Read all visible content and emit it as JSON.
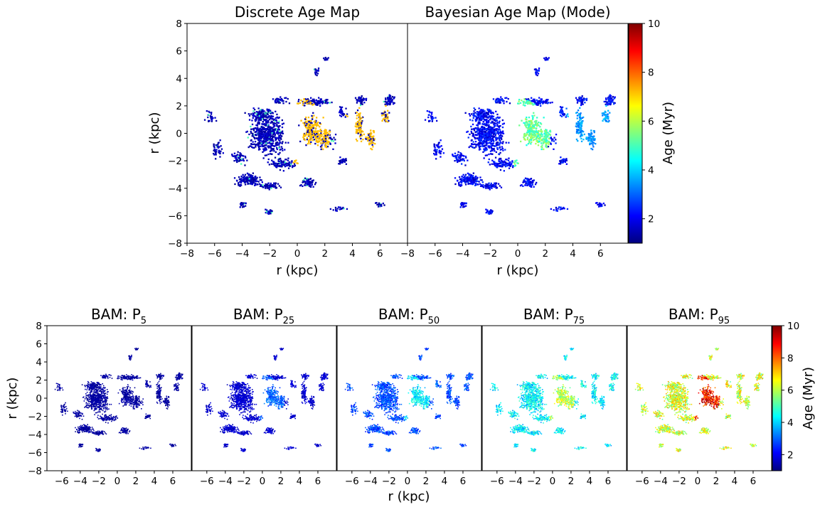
{
  "colors": {
    "colormap": "jet",
    "colormap_stops": [
      "#00007f",
      "#0000ff",
      "#007fff",
      "#00ffff",
      "#7fff7f",
      "#ffff00",
      "#ff7f00",
      "#ff0000",
      "#7f0000"
    ],
    "background": "#ffffff",
    "axes": "#000000"
  },
  "chart_data": [
    {
      "type": "heatmap",
      "title": "Discrete Age Map",
      "xlabel": "r (kpc)",
      "ylabel": "r (kpc)",
      "xlim": [
        -8,
        8
      ],
      "ylim": [
        -8,
        8
      ],
      "xticks": [
        "−8",
        "−6",
        "−4",
        "−2",
        "0",
        "2",
        "4",
        "6"
      ],
      "yticks": [
        "−8",
        "−6",
        "−4",
        "−2",
        "0",
        "2",
        "4",
        "6",
        "8"
      ],
      "colorbar": "shared top",
      "regions": [
        {
          "x": -2.2,
          "y": -0.2,
          "age": 1.2
        },
        {
          "x": -2.5,
          "y": 1.3,
          "age": 1.3
        },
        {
          "x": -3.5,
          "y": -3.4,
          "age": 1.5
        },
        {
          "x": 1.0,
          "y": 0.2,
          "age": 7.5
        },
        {
          "x": 2.0,
          "y": -0.4,
          "age": 7.0
        },
        {
          "x": 4.5,
          "y": 0.6,
          "age": 7.2
        },
        {
          "x": 5.3,
          "y": -0.4,
          "age": 7.0
        },
        {
          "x": 6.7,
          "y": 2.4,
          "age": 1.3
        },
        {
          "x": 0.8,
          "y": -3.6,
          "age": 1.4
        },
        {
          "x": -2.0,
          "y": -5.7,
          "age": 1.2
        }
      ]
    },
    {
      "type": "heatmap",
      "title": "Bayesian Age Map (Mode)",
      "xlabel": "r (kpc)",
      "xlim": [
        -8,
        8
      ],
      "ylim": [
        -8,
        8
      ],
      "xticks": [
        "−8",
        "−6",
        "−4",
        "−2",
        "0",
        "2",
        "4",
        "6"
      ],
      "colorbar": "shared top",
      "regions": [
        {
          "x": -2.2,
          "y": -0.2,
          "age": 1.8
        },
        {
          "x": -2.5,
          "y": 1.3,
          "age": 2.0
        },
        {
          "x": -3.5,
          "y": -3.4,
          "age": 2.0
        },
        {
          "x": 1.0,
          "y": 0.2,
          "age": 5.0
        },
        {
          "x": 2.0,
          "y": -0.4,
          "age": 4.5
        },
        {
          "x": 4.5,
          "y": 0.6,
          "age": 3.0
        },
        {
          "x": 5.3,
          "y": -0.4,
          "age": 3.0
        },
        {
          "x": 6.7,
          "y": 2.4,
          "age": 2.0
        }
      ]
    },
    {
      "type": "heatmap",
      "title_main": "BAM: P",
      "title_sub": "5",
      "xlim": [
        -8,
        8
      ],
      "ylim": [
        -8,
        8
      ],
      "ylabel": "r (kpc)",
      "xticks": [
        "−6",
        "−4",
        "−2",
        "0",
        "2",
        "4",
        "6"
      ],
      "yticks": [
        "−8",
        "−6",
        "−4",
        "−2",
        "0",
        "2",
        "4",
        "6",
        "8"
      ],
      "typical_age": 1.2
    },
    {
      "type": "heatmap",
      "title_main": "BAM: P",
      "title_sub": "25",
      "xlim": [
        -8,
        8
      ],
      "ylim": [
        -8,
        8
      ],
      "xticks": [
        "−6",
        "−4",
        "−2",
        "0",
        "2",
        "4",
        "6"
      ],
      "typical_age": 1.8
    },
    {
      "type": "heatmap",
      "title_main": "BAM: P",
      "title_sub": "50",
      "xlim": [
        -8,
        8
      ],
      "ylim": [
        -8,
        8
      ],
      "xlabel": "r (kpc)",
      "xticks": [
        "−6",
        "−4",
        "−2",
        "0",
        "2",
        "4",
        "6"
      ],
      "typical_age": 2.8
    },
    {
      "type": "heatmap",
      "title_main": "BAM: P",
      "title_sub": "75",
      "xlim": [
        -8,
        8
      ],
      "ylim": [
        -8,
        8
      ],
      "xticks": [
        "−6",
        "−4",
        "−2",
        "0",
        "2",
        "4",
        "6"
      ],
      "typical_age": 4.2
    },
    {
      "type": "heatmap",
      "title_main": "BAM: P",
      "title_sub": "95",
      "xlim": [
        -8,
        8
      ],
      "ylim": [
        -8,
        8
      ],
      "xticks": [
        "−6",
        "−4",
        "−2",
        "0",
        "2",
        "4",
        "6"
      ],
      "typical_age": 6.0
    }
  ],
  "colorbars": [
    {
      "label": "Age (Myr)",
      "range": [
        1,
        10
      ],
      "ticks": [
        "2",
        "4",
        "6",
        "8",
        "10"
      ],
      "tick_values": [
        2,
        4,
        6,
        8,
        10
      ]
    },
    {
      "label": "Age (Myr)",
      "range": [
        1,
        10
      ],
      "ticks": [
        "2",
        "4",
        "6",
        "8",
        "10"
      ],
      "tick_values": [
        2,
        4,
        6,
        8,
        10
      ]
    }
  ]
}
